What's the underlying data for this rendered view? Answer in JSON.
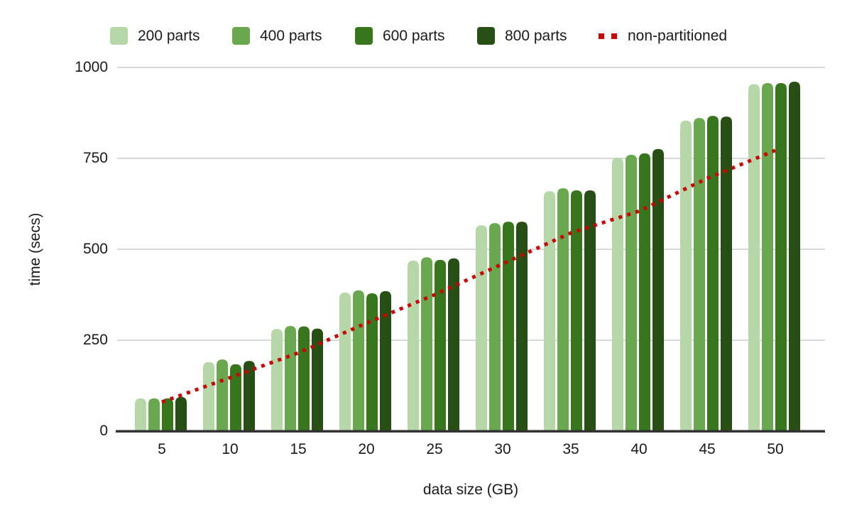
{
  "page": {
    "background": "#ffffff"
  },
  "colors": {
    "grid": "#d9d9d9",
    "axis_baseline": "#333333",
    "text": "#1a1a1a"
  },
  "chart_data": {
    "type": "bar",
    "title": "",
    "xlabel": "data size (GB)",
    "ylabel": "time (secs)",
    "categories": [
      5,
      10,
      15,
      20,
      25,
      30,
      35,
      40,
      45,
      50
    ],
    "x_tick_labels": [
      "5",
      "10",
      "15",
      "20",
      "25",
      "30",
      "35",
      "40",
      "45",
      "50"
    ],
    "y_ticks": [
      0,
      250,
      500,
      750,
      1000
    ],
    "y_tick_labels": [
      "0",
      "250",
      "500",
      "750",
      "1000"
    ],
    "ylim": [
      0,
      1000
    ],
    "grid": true,
    "legend_position": "top",
    "series": [
      {
        "name": "200 parts",
        "color": "#b6d7a8",
        "values": [
          90,
          190,
          281,
          381,
          469,
          566,
          660,
          752,
          854,
          954
        ]
      },
      {
        "name": "400 parts",
        "color": "#6aa84f",
        "values": [
          90,
          197,
          289,
          387,
          478,
          572,
          668,
          760,
          861,
          957
        ]
      },
      {
        "name": "600 parts",
        "color": "#38761d",
        "values": [
          90,
          184,
          288,
          379,
          471,
          576,
          662,
          764,
          867,
          957
        ]
      },
      {
        "name": "800 parts",
        "color": "#274e13",
        "values": [
          94,
          193,
          282,
          385,
          475,
          576,
          662,
          776,
          865,
          961
        ]
      }
    ],
    "line_series": {
      "name": "non-partitioned",
      "color": "#cc0000",
      "style": "dotted",
      "values": [
        80,
        147,
        215,
        297,
        375,
        460,
        545,
        605,
        695,
        772
      ]
    }
  }
}
